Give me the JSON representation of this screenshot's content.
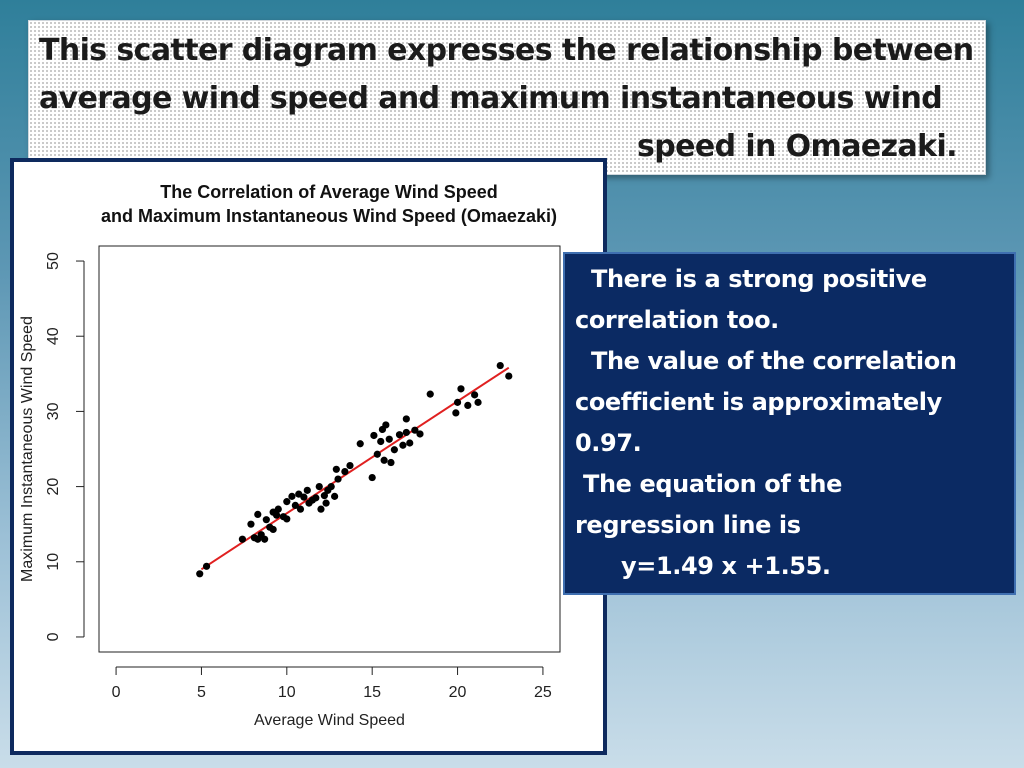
{
  "slide": {
    "title_lines": [
      "This scatter diagram expresses the relationship between",
      "average wind speed and maximum instantaneous wind",
      "speed in Omaezaki."
    ],
    "info_lines": [
      "There is a strong positive",
      "correlation too.",
      "The value of the correlation",
      "coefficient is approximately",
      "0.97.",
      "The equation of the",
      "regression line is",
      "y=1.49 x +1.55."
    ]
  },
  "chart_data": {
    "type": "scatter",
    "title": "The Correlation of Average Wind Speed\nand Maximum Instantaneous Wind Speed (Omaezaki)",
    "xlabel": "Average Wind Speed",
    "ylabel": "Maximum Instantaneous Wind Speed",
    "xlim": [
      -1,
      26
    ],
    "ylim": [
      -2,
      52
    ],
    "xticks": [
      0,
      5,
      10,
      15,
      20,
      25
    ],
    "yticks": [
      0,
      10,
      20,
      30,
      40,
      50
    ],
    "grid": false,
    "regression_line": {
      "slope": 1.49,
      "intercept": 1.55,
      "x_range": [
        5,
        23
      ],
      "color": "#e02020"
    },
    "point_color": "#000000",
    "points": [
      [
        4.9,
        8.4
      ],
      [
        5.3,
        9.4
      ],
      [
        7.4,
        13.0
      ],
      [
        7.9,
        15.0
      ],
      [
        8.1,
        13.2
      ],
      [
        8.3,
        13.0
      ],
      [
        8.3,
        16.3
      ],
      [
        8.5,
        13.6
      ],
      [
        8.7,
        13.0
      ],
      [
        8.8,
        15.6
      ],
      [
        9.0,
        14.6
      ],
      [
        9.2,
        14.3
      ],
      [
        9.2,
        16.6
      ],
      [
        9.4,
        16.2
      ],
      [
        9.5,
        17.0
      ],
      [
        9.8,
        16.0
      ],
      [
        10.0,
        15.7
      ],
      [
        10.0,
        18.0
      ],
      [
        10.3,
        18.7
      ],
      [
        10.5,
        17.5
      ],
      [
        10.7,
        19.0
      ],
      [
        10.8,
        17.0
      ],
      [
        11.0,
        18.6
      ],
      [
        11.2,
        19.5
      ],
      [
        11.3,
        17.8
      ],
      [
        11.5,
        18.2
      ],
      [
        11.7,
        18.5
      ],
      [
        11.9,
        20.0
      ],
      [
        12.0,
        17.0
      ],
      [
        12.2,
        18.8
      ],
      [
        12.3,
        17.8
      ],
      [
        12.4,
        19.5
      ],
      [
        12.6,
        20.0
      ],
      [
        12.8,
        18.7
      ],
      [
        12.9,
        22.3
      ],
      [
        13.0,
        21.0
      ],
      [
        13.4,
        22.0
      ],
      [
        13.7,
        22.8
      ],
      [
        14.3,
        25.7
      ],
      [
        15.0,
        21.2
      ],
      [
        15.1,
        26.8
      ],
      [
        15.3,
        24.3
      ],
      [
        15.5,
        26.0
      ],
      [
        15.6,
        27.6
      ],
      [
        15.7,
        23.5
      ],
      [
        15.8,
        28.2
      ],
      [
        16.0,
        26.3
      ],
      [
        16.1,
        23.2
      ],
      [
        16.3,
        24.9
      ],
      [
        16.6,
        26.9
      ],
      [
        16.8,
        25.5
      ],
      [
        17.0,
        27.2
      ],
      [
        17.0,
        29.0
      ],
      [
        17.2,
        25.8
      ],
      [
        17.5,
        27.5
      ],
      [
        17.8,
        27.0
      ],
      [
        18.4,
        32.3
      ],
      [
        19.9,
        29.8
      ],
      [
        20.0,
        31.2
      ],
      [
        20.2,
        33.0
      ],
      [
        20.6,
        30.8
      ],
      [
        21.0,
        32.2
      ],
      [
        21.2,
        31.2
      ],
      [
        22.5,
        36.1
      ],
      [
        23.0,
        34.7
      ]
    ]
  }
}
